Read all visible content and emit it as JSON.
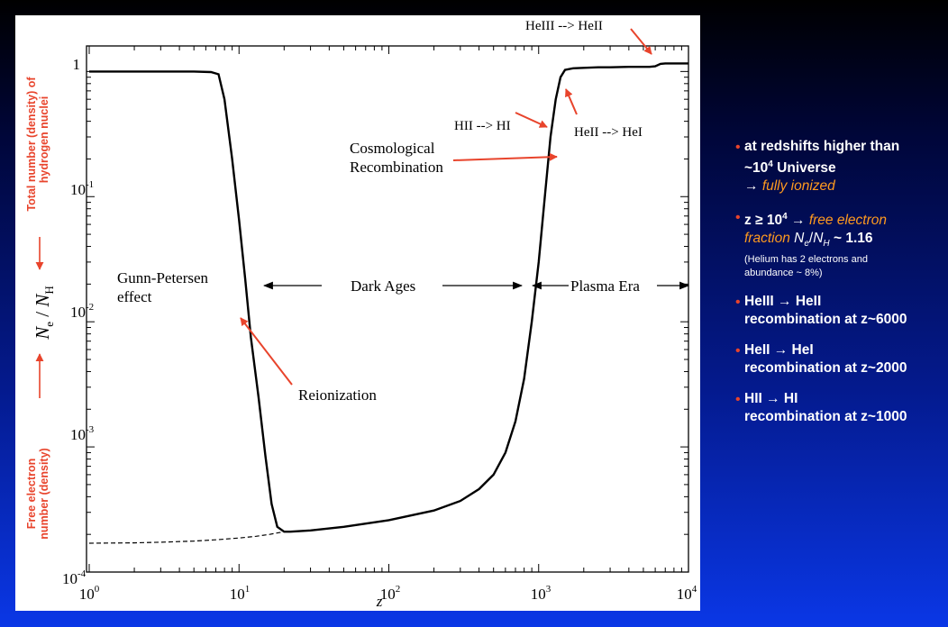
{
  "chart_data": {
    "type": "line",
    "xlabel": "z",
    "x_scale": "log",
    "y_scale": "log",
    "xlim": [
      1,
      10000
    ],
    "ylim": [
      0.0001,
      1.6
    ],
    "x_ticks": [
      {
        "value": 1,
        "label": "10",
        "exp": "0"
      },
      {
        "value": 10,
        "label": "10",
        "exp": "1"
      },
      {
        "value": 100,
        "label": "10",
        "exp": "2"
      },
      {
        "value": 1000,
        "label": "10",
        "exp": "3"
      },
      {
        "value": 10000,
        "label": "10",
        "exp": "4"
      }
    ],
    "y_ticks": [
      {
        "value": 1,
        "label": "1",
        "exp": ""
      },
      {
        "value": 0.1,
        "label": "10",
        "exp": "-1"
      },
      {
        "value": 0.01,
        "label": "10",
        "exp": "-2"
      },
      {
        "value": 0.001,
        "label": "10",
        "exp": "-3"
      },
      {
        "value": 0.0001,
        "label": "10",
        "exp": "-4"
      }
    ],
    "series": [
      {
        "style": "solid",
        "x": [
          1,
          5,
          6.5,
          7.3,
          8.0,
          9.0,
          10.0,
          11.0,
          12.0,
          13.5,
          15.0,
          16.5,
          18.0,
          20.0,
          22,
          30,
          50,
          100,
          200,
          300,
          400,
          500,
          600,
          700,
          800,
          900,
          1000,
          1100,
          1200,
          1300,
          1400,
          1500,
          1700,
          2000,
          2500,
          3000,
          4000,
          5000,
          5500,
          6000,
          6500,
          7000,
          8000,
          10000
        ],
        "y": [
          1.0,
          1.0,
          0.99,
          0.95,
          0.6,
          0.2,
          0.065,
          0.022,
          0.0075,
          0.0025,
          0.00085,
          0.00035,
          0.00023,
          0.00021,
          0.00021,
          0.000215,
          0.00023,
          0.00026,
          0.00031,
          0.00037,
          0.00046,
          0.0006,
          0.0009,
          0.0016,
          0.0035,
          0.01,
          0.03,
          0.1,
          0.3,
          0.6,
          0.9,
          1.03,
          1.06,
          1.07,
          1.08,
          1.08,
          1.09,
          1.09,
          1.09,
          1.1,
          1.15,
          1.16,
          1.16,
          1.16
        ]
      },
      {
        "style": "dashed",
        "x": [
          1,
          2,
          3,
          5,
          7,
          10,
          13,
          16,
          20
        ],
        "y": [
          0.00017,
          0.000171,
          0.000173,
          0.000177,
          0.000181,
          0.000187,
          0.000193,
          0.0002,
          0.00021
        ]
      }
    ]
  },
  "y_axis": {
    "symbol": "N",
    "sub1": "e",
    "sep": " / ",
    "symbol2": "N",
    "sub2": "H",
    "upper_label_1": "Total number (density)  of",
    "upper_label_2": "hydrogen nuclei",
    "lower_label_1": "Free electron",
    "lower_label_2": "number (density)"
  },
  "annotations": {
    "heiii_heii": "HeIII --> HeII",
    "hii_hi": "HII --> HI",
    "heii_hei": "HeII --> HeI",
    "cosmological_1": "Cosmological",
    "cosmological_2": "Recombination",
    "gunn_1": "Gunn-Petersen",
    "gunn_2": "effect",
    "dark_ages": "Dark Ages",
    "plasma_era": "Plasma Era",
    "reionization": "Reionization"
  },
  "bullets": {
    "b1_line1": "at redshifts higher than",
    "b1_line2_pre": "~10",
    "b1_line2_sup": "4",
    "b1_line2_post": " Universe",
    "b1_line3_arrow": "→ ",
    "b1_line3_em": "fully ionized",
    "b2_pre": "z ≥ 10",
    "b2_sup": "4",
    "b2_arrow": " → ",
    "b2_em1": "free electron",
    "b2_em2": "fraction ",
    "b2_ratio_n1": "N",
    "b2_ratio_s1": "e",
    "b2_ratio_sep": "/",
    "b2_ratio_n2": "N",
    "b2_ratio_s2": "H",
    "b2_value": " ~ 1.16",
    "b2_small1": "(Helium has 2 electrons and",
    "b2_small2": "abundance ~ 8%)",
    "b3_line1": "HeIII → HeII",
    "b3_line2": "recombination at z~6000",
    "b4_line1": "HeII → HeI",
    "b4_line2": "recombination at z~2000",
    "b5_line1": "HII → HI",
    "b5_line2": "recombination at z~1000"
  },
  "colors": {
    "arrow": "#e8442c",
    "label_red": "#e8442c",
    "em_orange": "#ff9a1f"
  }
}
